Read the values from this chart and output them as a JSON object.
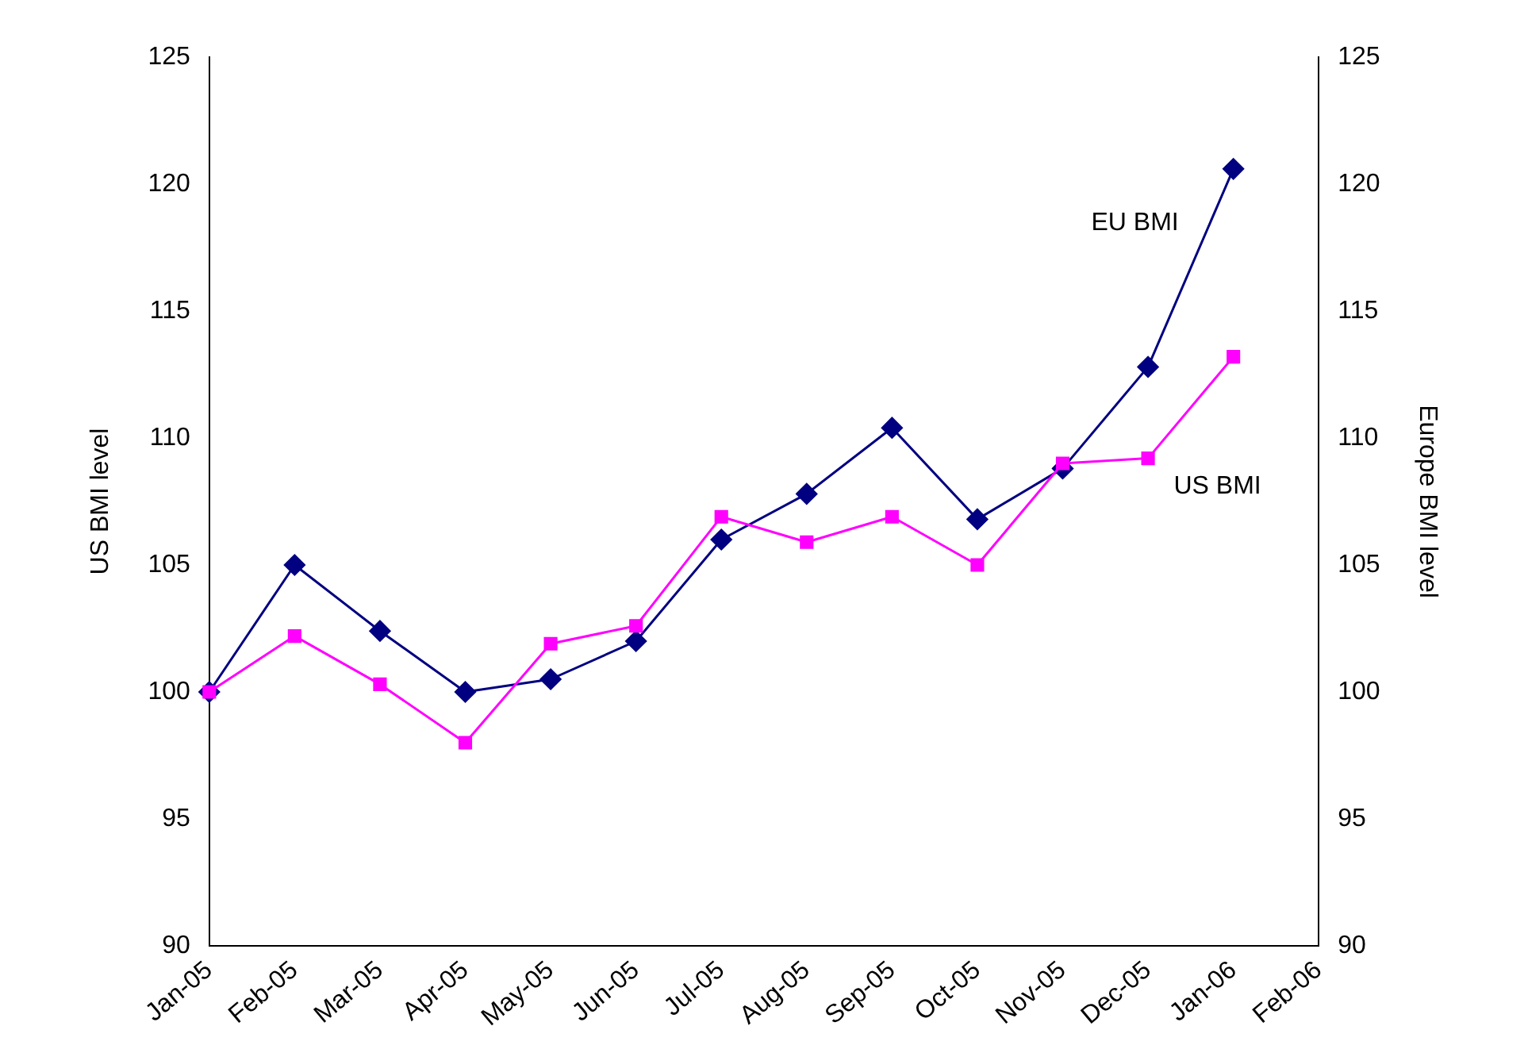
{
  "chart_data": {
    "type": "line",
    "categories": [
      "Jan-05",
      "Feb-05",
      "Mar-05",
      "Apr-05",
      "May-05",
      "Jun-05",
      "Jul-05",
      "Aug-05",
      "Sep-05",
      "Oct-05",
      "Nov-05",
      "Dec-05",
      "Jan-06",
      "Feb-06"
    ],
    "series": [
      {
        "name": "EU BMI",
        "color": "#000080",
        "marker": "diamond",
        "values": [
          100,
          105,
          102.4,
          100,
          100.5,
          102,
          106,
          107.8,
          110.4,
          106.8,
          108.8,
          112.8,
          120.6,
          null
        ]
      },
      {
        "name": "US BMI",
        "color": "#ff00ff",
        "marker": "square",
        "values": [
          100,
          102.2,
          100.3,
          98,
          101.9,
          102.6,
          106.9,
          105.9,
          106.9,
          105,
          109,
          109.2,
          113.2,
          null
        ]
      }
    ],
    "ylabel": "US BMI level",
    "y2label": "Europe BMI level",
    "ylim": [
      90,
      125
    ],
    "yticks": [
      90,
      95,
      100,
      105,
      110,
      115,
      120,
      125
    ],
    "y2lim": [
      90,
      125
    ],
    "y2ticks": [
      90,
      95,
      100,
      105,
      110,
      115,
      120,
      125
    ],
    "grid": false,
    "legend": false,
    "line_style": "solid"
  }
}
